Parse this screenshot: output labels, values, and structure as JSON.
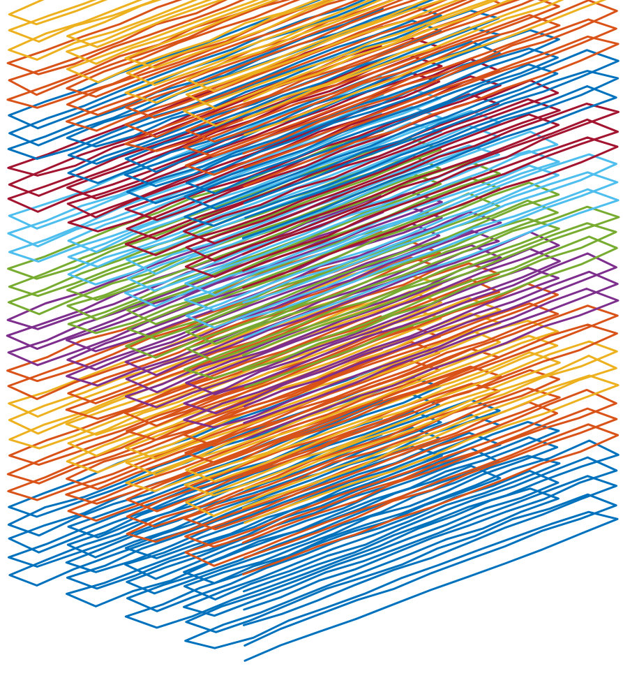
{
  "figure": {
    "description_visible_text": "",
    "colors": {
      "blue": "#0072BD",
      "orange": "#D95319",
      "yellow": "#EDB120",
      "purple": "#7E2F8E",
      "green": "#77AC30",
      "light_blue": "#4DBEEE",
      "dark_red": "#A2142F"
    },
    "layer_color_order": [
      "blue",
      "blue",
      "blue",
      "blue",
      "blue",
      "orange",
      "orange",
      "orange",
      "yellow",
      "yellow",
      "yellow",
      "orange",
      "orange",
      "purple",
      "purple",
      "purple",
      "green",
      "green",
      "green",
      "light_blue",
      "light_blue",
      "light_blue",
      "dark_red",
      "dark_red",
      "dark_red",
      "blue",
      "blue",
      "blue",
      "orange",
      "orange",
      "orange",
      "yellow",
      "yellow",
      "yellow"
    ]
  }
}
